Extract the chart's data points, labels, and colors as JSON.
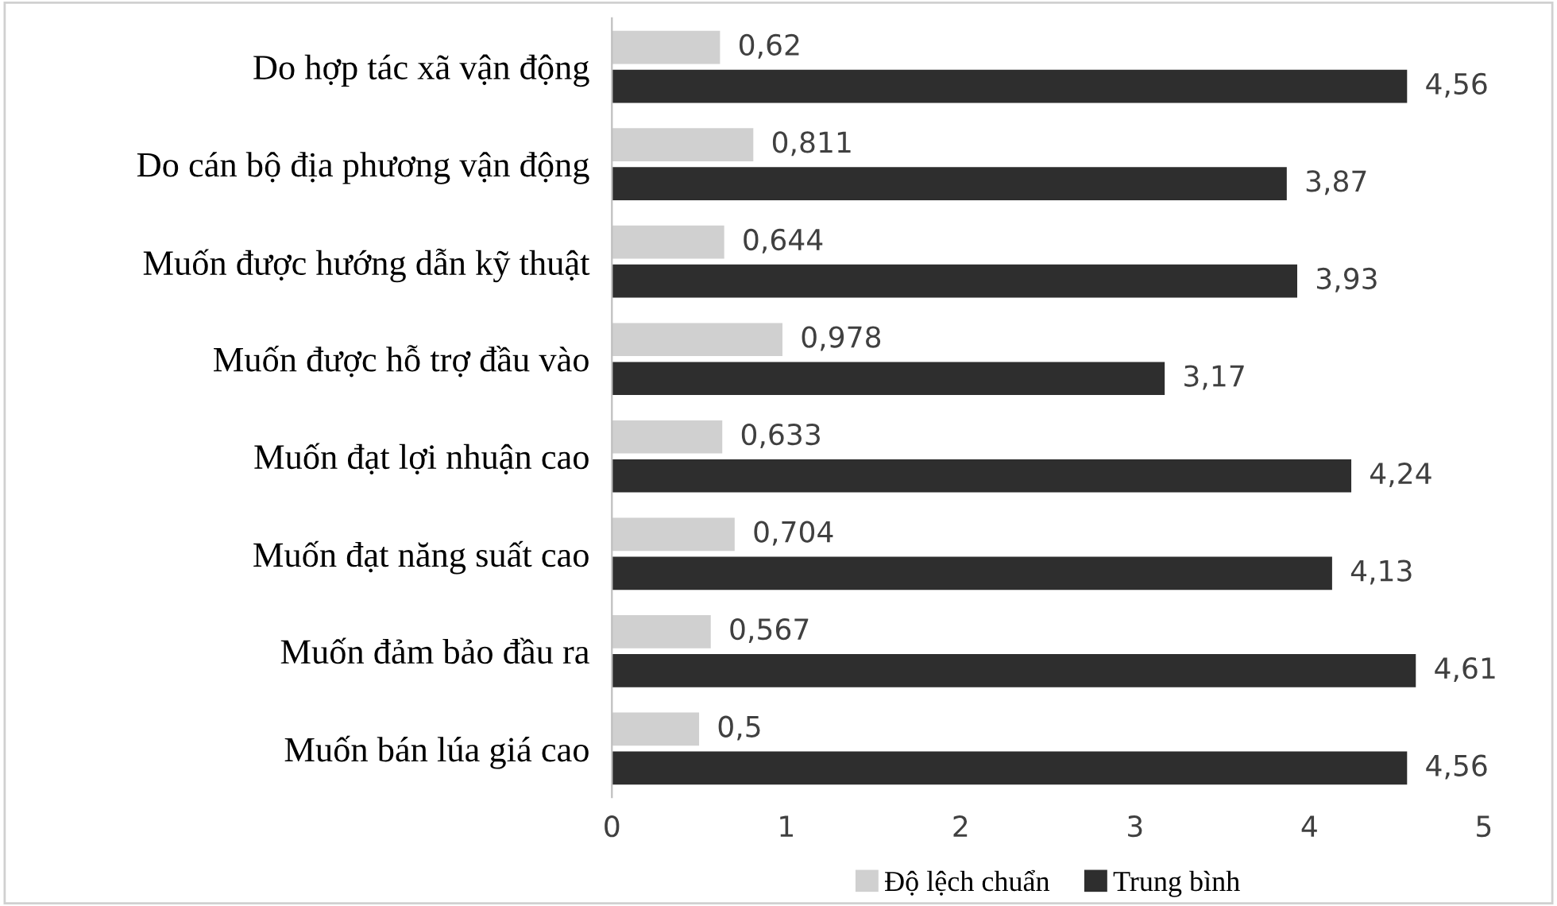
{
  "chart_data": {
    "type": "bar",
    "orientation": "horizontal",
    "categories": [
      "Do hợp tác xã vận động",
      "Do cán bộ địa phương vận động",
      "Muốn được hướng dẫn kỹ thuật",
      "Muốn được hỗ trợ đầu vào",
      "Muốn đạt lợi nhuận cao",
      "Muốn đạt năng suất cao",
      "Muốn đảm bảo đầu ra",
      "Muốn bán lúa giá cao"
    ],
    "series": [
      {
        "name": "Độ lệch chuẩn",
        "color": "#d0d0d0",
        "values": [
          0.62,
          0.811,
          0.644,
          0.978,
          0.633,
          0.704,
          0.567,
          0.5
        ],
        "value_labels": [
          "0,62",
          "0,811",
          "0,644",
          "0,978",
          "0,633",
          "0,704",
          "0,567",
          "0,5"
        ]
      },
      {
        "name": "Trung bình",
        "color": "#2e2e2e",
        "values": [
          4.56,
          3.87,
          3.93,
          3.17,
          4.24,
          4.13,
          4.61,
          4.56
        ],
        "value_labels": [
          "4,56",
          "3,87",
          "3,93",
          "3,17",
          "4,24",
          "4,13",
          "4,61",
          "4,56"
        ]
      }
    ],
    "xlim": [
      0,
      5
    ],
    "xticks": [
      0,
      1,
      2,
      3,
      4,
      5
    ],
    "grid": false,
    "legend": "bottom"
  }
}
